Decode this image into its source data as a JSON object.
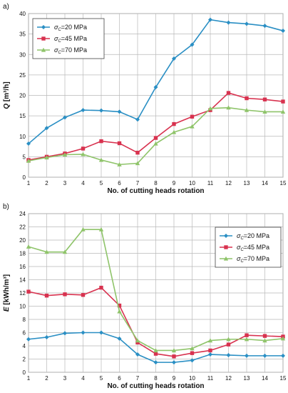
{
  "colors": {
    "s20": "#2a8fc4",
    "s45": "#d8324f",
    "s70": "#8fc46a",
    "grid": "#b9b9b9",
    "plotbg": "#ffffff"
  },
  "chart_data": [
    {
      "panel": "a)",
      "type": "line",
      "ylabel": "Q [m³/h]",
      "xlabel": "No. of cutting heads rotation",
      "x": [
        1,
        2,
        3,
        4,
        5,
        6,
        7,
        8,
        9,
        10,
        11,
        12,
        13,
        14,
        15
      ],
      "ylim": [
        0,
        40
      ],
      "yticks": [
        0,
        5,
        10,
        15,
        20,
        25,
        30,
        35,
        40
      ],
      "grid": true,
      "legend": "top-left",
      "series": [
        {
          "name": "σC=20 MPa",
          "values": [
            8.2,
            12.0,
            14.6,
            16.4,
            16.3,
            16.0,
            14.1,
            22.0,
            29.0,
            32.4,
            38.5,
            37.8,
            37.5,
            37.0,
            35.8
          ]
        },
        {
          "name": "σC=45 MPa",
          "values": [
            4.2,
            5.0,
            5.8,
            7.0,
            8.8,
            8.3,
            6.0,
            9.6,
            13.0,
            14.8,
            16.4,
            20.6,
            19.3,
            19.0,
            18.5
          ]
        },
        {
          "name": "σC=70 MPa",
          "values": [
            4.0,
            4.8,
            5.5,
            5.6,
            4.2,
            3.1,
            3.4,
            8.2,
            11.0,
            12.4,
            16.8,
            17.0,
            16.4,
            16.0,
            16.0
          ]
        }
      ]
    },
    {
      "panel": "b)",
      "type": "line",
      "ylabel": "E [kWh/m³]",
      "xlabel": "No. of cutting heads rotation",
      "x": [
        1,
        2,
        3,
        4,
        5,
        6,
        7,
        8,
        9,
        10,
        11,
        12,
        13,
        14,
        15
      ],
      "ylim": [
        0,
        24
      ],
      "yticks": [
        0,
        2,
        4,
        6,
        8,
        10,
        12,
        14,
        16,
        18,
        20,
        22,
        24
      ],
      "grid": true,
      "legend": "top-right",
      "series": [
        {
          "name": "σC=20 MPa",
          "values": [
            5.0,
            5.3,
            5.9,
            6.0,
            6.0,
            5.1,
            2.7,
            1.5,
            1.5,
            1.8,
            2.7,
            2.6,
            2.5,
            2.5,
            2.5
          ]
        },
        {
          "name": "σC=45 MPa",
          "values": [
            12.2,
            11.6,
            11.8,
            11.7,
            12.8,
            10.1,
            4.5,
            2.8,
            2.4,
            2.9,
            3.3,
            4.2,
            5.6,
            5.5,
            5.4
          ]
        },
        {
          "name": "σC=70 MPa",
          "values": [
            19.0,
            18.2,
            18.2,
            21.6,
            21.6,
            9.2,
            4.8,
            3.3,
            3.3,
            3.6,
            4.8,
            5.0,
            5.0,
            4.8,
            5.1
          ]
        }
      ]
    }
  ]
}
